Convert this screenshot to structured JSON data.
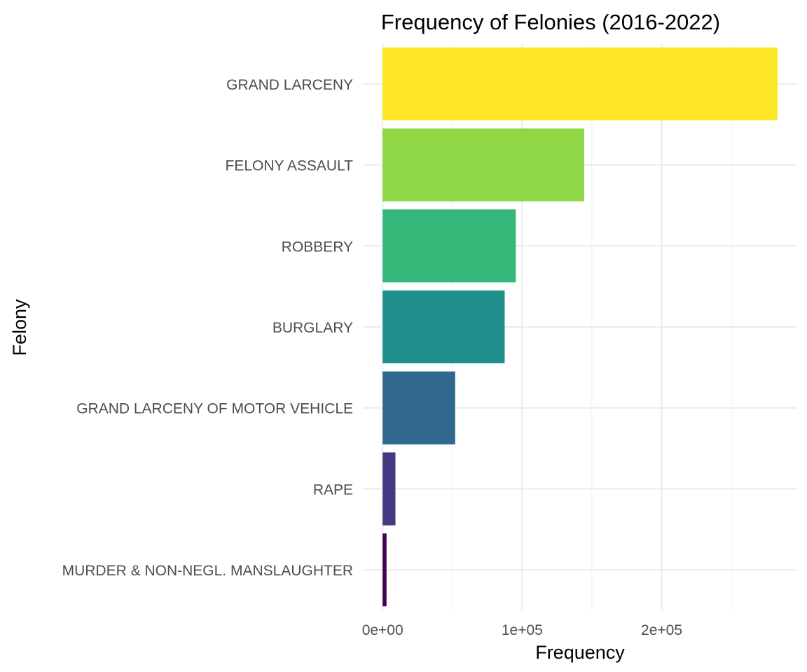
{
  "chart_data": {
    "type": "bar",
    "orientation": "horizontal",
    "title": "Frequency of Felonies (2016-2022)",
    "xlabel": "Frequency",
    "ylabel": "Felony",
    "categories": [
      "GRAND LARCENY",
      "FELONY ASSAULT",
      "ROBBERY",
      "BURGLARY",
      "GRAND LARCENY OF MOTOR VEHICLE",
      "RAPE",
      "MURDER & NON-NEGL. MANSLAUGHTER"
    ],
    "values": [
      283000,
      144500,
      95500,
      87500,
      52000,
      9200,
      2800
    ],
    "colors": [
      "#FDE725",
      "#8FD744",
      "#35B779",
      "#21908C",
      "#31688E",
      "#443A83",
      "#440154"
    ],
    "x_ticks": [
      0,
      100000,
      200000
    ],
    "x_tick_labels": [
      "0e+00",
      "1e+05",
      "2e+05"
    ],
    "xlim": [
      -14150,
      297150
    ],
    "grid": true,
    "legend": "none"
  }
}
